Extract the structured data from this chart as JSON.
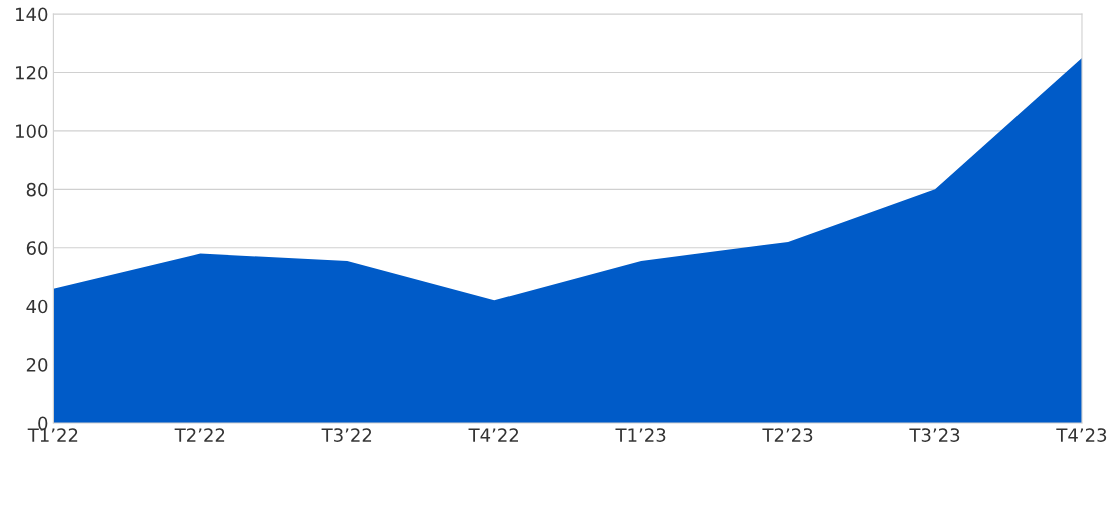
{
  "chart_data": {
    "type": "area",
    "categories": [
      "T1’22",
      "T2’22",
      "T3’22",
      "T4’22",
      "T1’23",
      "T2’23",
      "T3’23",
      "T4’23"
    ],
    "series": [
      {
        "color": "#005bc8",
        "values": [
          46,
          58,
          55.5,
          42,
          55.5,
          62,
          80,
          125
        ]
      }
    ],
    "ylim": [
      0,
      140
    ],
    "yticks": [
      0,
      20,
      40,
      60,
      80,
      100,
      120,
      140
    ],
    "grid": "y",
    "legend": false
  }
}
